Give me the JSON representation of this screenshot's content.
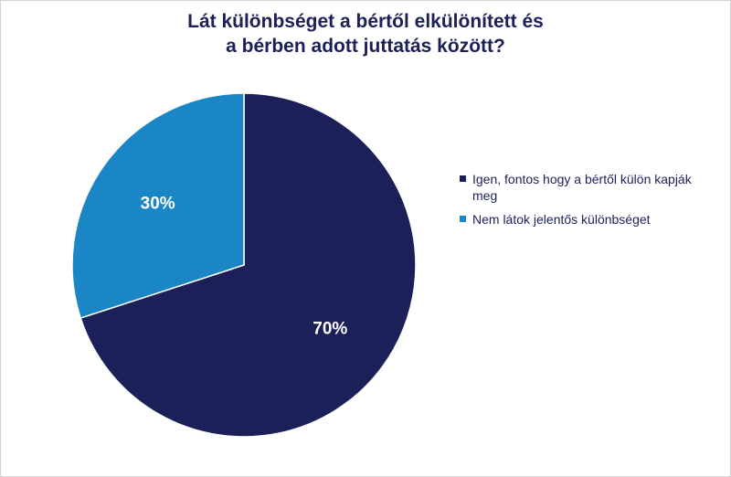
{
  "title": {
    "line1": "Lát különbséget a bértől elkülönített és",
    "line2": "a bérben adott juttatás között?"
  },
  "chart_data": {
    "type": "pie",
    "categories": [
      "Igen, fontos hogy a bértől külön kapják meg",
      "Nem látok jelentős különbséget"
    ],
    "values": [
      70,
      30
    ],
    "value_labels": [
      "70%",
      "30%"
    ],
    "colors": [
      "#1b2158",
      "#1b86c6"
    ],
    "legend_position": "right",
    "legend": [
      "Igen, fontos hogy a bértől külön kapják meg",
      "Nem látok jelentős különbséget"
    ]
  }
}
